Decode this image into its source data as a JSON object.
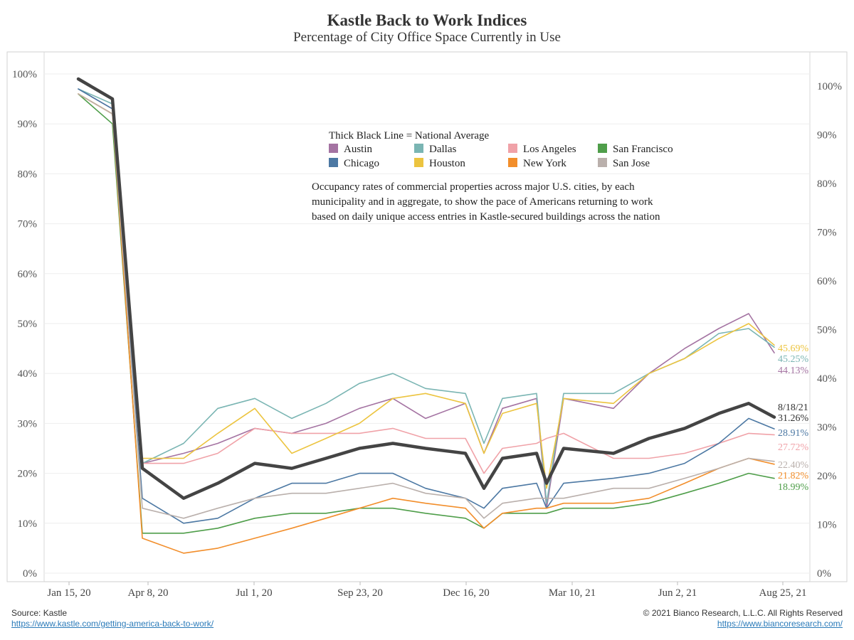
{
  "header": {
    "title": "Kastle Back to Work Indices",
    "subtitle": "Percentage of City Office Space Currently in Use"
  },
  "footer": {
    "source_label": "Source: Kastle",
    "source_url": "https://www.kastle.com/getting-america-back-to-work/",
    "copyright": "© 2021 Bianco Research, L.L.C. All Rights Reserved",
    "site_url": "https://www.biancoresearch.com/"
  },
  "legend": {
    "heading": "Thick Black Line = National Average",
    "description": [
      "Occupancy rates of commercial properties across major U.S. cities, by each",
      "municipality and in aggregate, to show the pace of Americans returning to work",
      "based on daily unique access entries in Kastle-secured buildings across the nation"
    ]
  },
  "colors": {
    "Austin": "#a473a2",
    "Dallas": "#7ab5b3",
    "Los Angeles": "#f0a2a8",
    "San Francisco": "#4f9e4a",
    "Chicago": "#4c78a3",
    "Houston": "#ecc43f",
    "New York": "#f28e2b",
    "San Jose": "#bab0ac",
    "National Average": "#444444"
  },
  "chart_data": {
    "type": "line",
    "title": "Kastle Back to Work Indices",
    "subtitle": "Percentage of City Office Space Currently in Use",
    "ylim": [
      0,
      100
    ],
    "y_ticks": [
      "0%",
      "10%",
      "20%",
      "30%",
      "40%",
      "50%",
      "60%",
      "70%",
      "80%",
      "90%",
      "100%"
    ],
    "x_tick_labels": [
      "Jan 15, 20",
      "Apr 8, 20",
      "Jul 1, 20",
      "Sep 23, 20",
      "Dec 16, 20",
      "Mar 10, 21",
      "Jun 2, 21",
      "Aug 25, 21"
    ],
    "x": [
      "Jan 15, 20",
      "Mar 18, 20",
      "Apr 8, 20",
      "May 6, 20",
      "Jun 3, 20",
      "Jul 1, 20",
      "Jul 29, 20",
      "Aug 26, 20",
      "Sep 23, 20",
      "Oct 21, 20",
      "Nov 18, 20",
      "Dec 16, 20",
      "Dec 30, 20",
      "Jan 13, 21",
      "Feb 10, 21",
      "Feb 24, 21",
      "Mar 10, 21",
      "Apr 7, 21",
      "May 5, 21",
      "Jun 2, 21",
      "Jun 30, 21",
      "Jul 28, 21",
      "Aug 18, 21"
    ],
    "series": [
      {
        "name": "Austin",
        "values": [
          97,
          93,
          22,
          24,
          26,
          29,
          28,
          30,
          33,
          35,
          31,
          34,
          24,
          33,
          35,
          13,
          35,
          33,
          40,
          45,
          49,
          52,
          44.13
        ]
      },
      {
        "name": "Dallas",
        "values": [
          97,
          94,
          22,
          26,
          33,
          35,
          31,
          34,
          38,
          40,
          37,
          36,
          26,
          35,
          36,
          14,
          36,
          36,
          40,
          43,
          48,
          49,
          45.25
        ]
      },
      {
        "name": "Los Angeles",
        "values": [
          96,
          92,
          22,
          22,
          24,
          29,
          28,
          28,
          28,
          29,
          27,
          27,
          20,
          25,
          26,
          27,
          28,
          23,
          23,
          24,
          26,
          28,
          27.72
        ]
      },
      {
        "name": "San Francisco",
        "values": [
          96,
          90,
          8,
          8,
          9,
          11,
          12,
          12,
          13,
          13,
          12,
          11,
          9,
          12,
          12,
          12,
          13,
          13,
          14,
          16,
          18,
          20,
          18.99
        ]
      },
      {
        "name": "Chicago",
        "values": [
          97,
          93,
          15,
          10,
          11,
          15,
          18,
          18,
          20,
          20,
          17,
          15,
          13,
          17,
          18,
          13,
          18,
          19,
          20,
          22,
          26,
          31,
          28.91
        ]
      },
      {
        "name": "Houston",
        "values": [
          96,
          92,
          23,
          23,
          28,
          33,
          24,
          27,
          30,
          35,
          36,
          34,
          24,
          32,
          34,
          17,
          35,
          34,
          40,
          43,
          47,
          50,
          45.69
        ]
      },
      {
        "name": "New York",
        "values": [
          96,
          92,
          7,
          4,
          5,
          7,
          9,
          11,
          13,
          15,
          14,
          13,
          9,
          12,
          13,
          13,
          14,
          14,
          15,
          18,
          21,
          23,
          21.82
        ]
      },
      {
        "name": "San Jose",
        "values": [
          96,
          92,
          13,
          11,
          13,
          15,
          16,
          16,
          17,
          18,
          16,
          15,
          11,
          14,
          15,
          15,
          15,
          17,
          17,
          19,
          21,
          23,
          22.4
        ]
      },
      {
        "name": "National Average",
        "values": [
          99,
          95,
          21,
          15,
          18,
          22,
          21,
          23,
          25,
          26,
          25,
          24,
          17,
          23,
          24,
          18,
          25,
          24,
          27,
          29,
          32,
          34,
          31.26
        ]
      }
    ],
    "end_labels": {
      "Houston": "45.69%",
      "Dallas": "45.25%",
      "Austin": "44.13%",
      "National Average": "31.26%",
      "Chicago": "28.91%",
      "Los Angeles": "27.72%",
      "San Jose": "22.40%",
      "New York": "21.82%",
      "San Francisco": "18.99%"
    },
    "end_date_label": "8/18/21",
    "legend_order": [
      "Austin",
      "Dallas",
      "Los Angeles",
      "San Francisco",
      "Chicago",
      "Houston",
      "New York",
      "San Jose"
    ]
  }
}
